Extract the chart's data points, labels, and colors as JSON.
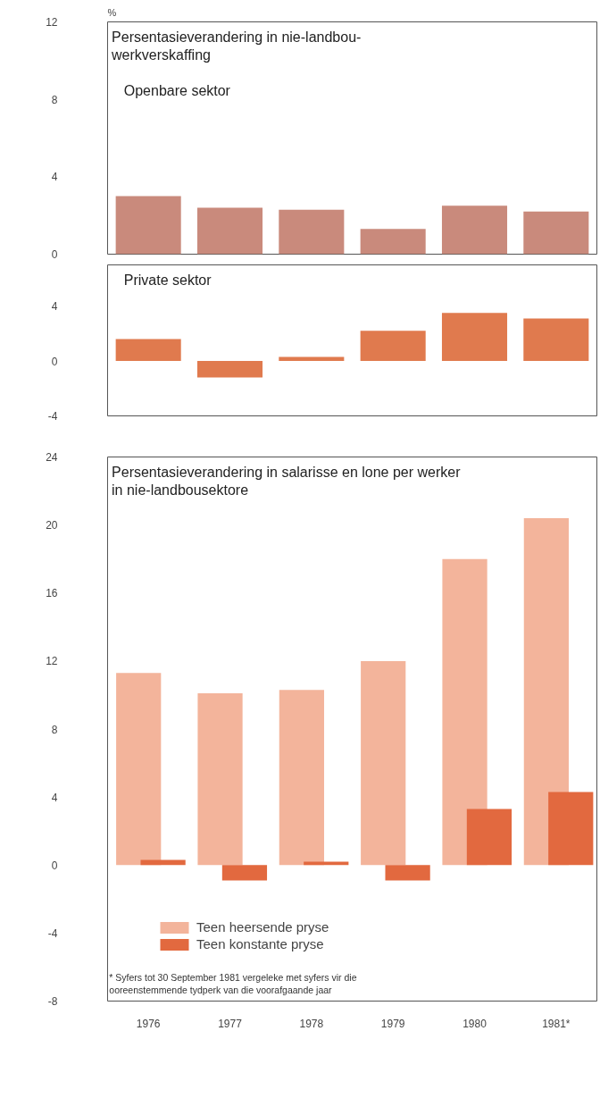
{
  "chart_data": [
    {
      "type": "bar",
      "title": "Persentasieverandering in nie-landbou-\nwerkverskaffing",
      "subtitle": "Openbare sektor",
      "ylabel": "%",
      "categories": [
        null,
        null,
        null,
        null,
        null,
        null
      ],
      "values": [
        3.0,
        2.4,
        2.3,
        1.3,
        2.5,
        2.2
      ],
      "color": "#c98a7c",
      "ylim": [
        0,
        12
      ],
      "yticks": [
        0,
        4,
        8,
        12
      ],
      "tick_labels": "y"
    },
    {
      "type": "bar",
      "subtitle": "Private sektor",
      "categories": [
        null,
        null,
        null,
        null,
        null,
        null
      ],
      "values": [
        1.6,
        -1.2,
        0.3,
        2.2,
        3.5,
        3.1
      ],
      "color": "#e07a4e",
      "ylim": [
        -4,
        7
      ],
      "yticks": [
        -4,
        0,
        4
      ],
      "tick_labels": "y"
    },
    {
      "type": "bar",
      "title": "Persentasieverandering in salarisse en lone per werker\nin nie-landbousektore",
      "categories": [
        "1976",
        "1977",
        "1978",
        "1979",
        "1980",
        "1981*"
      ],
      "series": [
        {
          "name": "Teen heersende pryse",
          "color": "#f3b49b",
          "values": [
            11.3,
            10.1,
            10.3,
            12.0,
            18.0,
            20.4
          ]
        },
        {
          "name": "Teen konstante pryse",
          "color": "#e2693f",
          "values": [
            0.3,
            -0.9,
            0.2,
            -0.9,
            3.3,
            4.3
          ]
        }
      ],
      "ylim": [
        -8,
        24
      ],
      "yticks": [
        -8,
        -4,
        0,
        4,
        8,
        12,
        16,
        20,
        24
      ],
      "legend": "bottom left",
      "annotations": [
        "* Syfers tot 30 September 1981 vergeleke met syfers vir die\nooreenstemmende tydperk van die voorafgaande jaar"
      ]
    }
  ]
}
